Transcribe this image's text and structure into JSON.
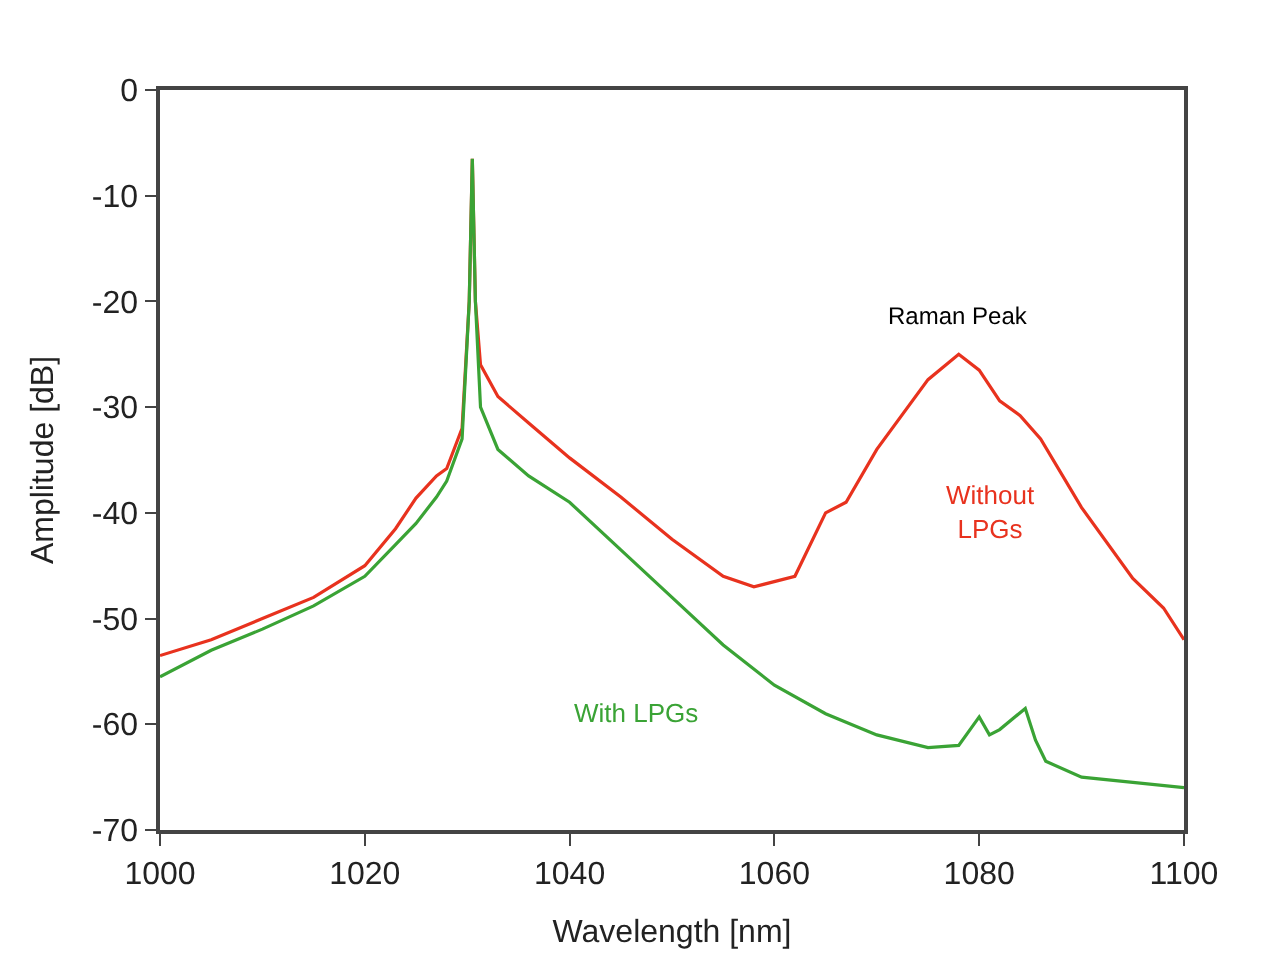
{
  "chart_data": {
    "type": "line",
    "xlabel": "Wavelength [nm]",
    "ylabel": "Amplitude [dB]",
    "xlim": [
      1000,
      1100
    ],
    "ylim": [
      -70,
      0
    ],
    "xticks": [
      1000,
      1020,
      1040,
      1060,
      1080,
      1100
    ],
    "yticks": [
      0,
      -10,
      -20,
      -30,
      -40,
      -50,
      -60,
      -70
    ],
    "legend": false,
    "annotations": [
      "Raman Peak"
    ],
    "series": [
      {
        "name": "Without LPGs",
        "color": "#e8321e",
        "x": [
          1000,
          1005,
          1010,
          1015,
          1020,
          1023,
          1025,
          1027,
          1028,
          1029.5,
          1030.2,
          1030.5,
          1030.8,
          1031.3,
          1033,
          1036,
          1040,
          1045,
          1050,
          1055,
          1058,
          1062,
          1065,
          1067,
          1070,
          1075,
          1078,
          1080,
          1082,
          1084,
          1086,
          1090,
          1095,
          1098,
          1100
        ],
        "values": [
          -53.5,
          -52,
          -50,
          -48,
          -45,
          -41.5,
          -38.6,
          -36.5,
          -35.8,
          -32,
          -20,
          -6.5,
          -20,
          -26,
          -29,
          -31.5,
          -34.8,
          -38.5,
          -42.5,
          -46,
          -47,
          -46,
          -40,
          -39,
          -34,
          -27.4,
          -25,
          -26.5,
          -29.4,
          -30.8,
          -33,
          -39.5,
          -46.2,
          -49,
          -52
        ]
      },
      {
        "name": "With LPGs",
        "color": "#3aa335",
        "x": [
          1000,
          1005,
          1010,
          1015,
          1020,
          1023,
          1025,
          1027,
          1028,
          1029.5,
          1030.2,
          1030.5,
          1030.8,
          1031.3,
          1033,
          1036,
          1040,
          1045,
          1050,
          1055,
          1060,
          1065,
          1070,
          1075,
          1078,
          1080,
          1081,
          1082,
          1084.5,
          1085.5,
          1086.5,
          1090,
          1095,
          1100
        ],
        "values": [
          -55.5,
          -53,
          -51,
          -48.8,
          -46,
          -43,
          -41,
          -38.5,
          -37,
          -33,
          -20,
          -6.5,
          -20,
          -30,
          -34,
          -36.5,
          -39,
          -43.5,
          -48,
          -52.5,
          -56.3,
          -59,
          -61,
          -62.2,
          -62,
          -59.3,
          -61,
          -60.5,
          -58.5,
          -61.5,
          -63.5,
          -65,
          -65.5,
          -66
        ]
      }
    ]
  }
}
